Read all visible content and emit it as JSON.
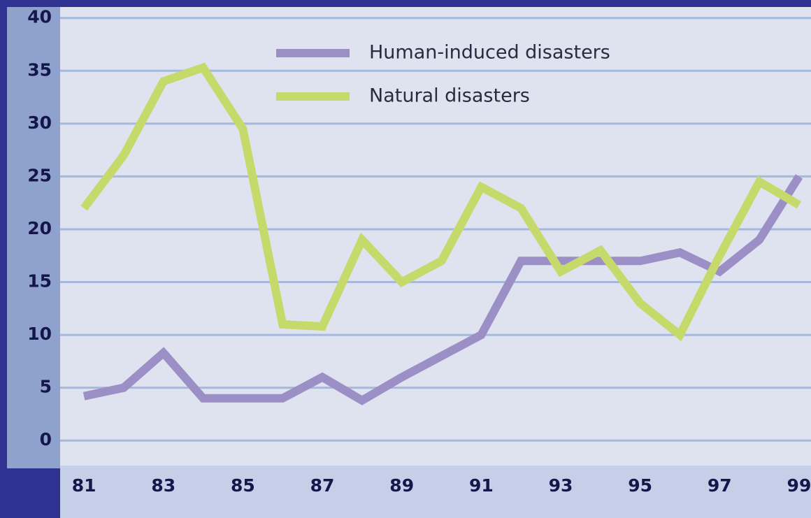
{
  "chart_data": {
    "type": "line",
    "x": [
      81,
      82,
      83,
      84,
      85,
      86,
      87,
      88,
      89,
      90,
      91,
      92,
      93,
      94,
      95,
      96,
      97,
      98,
      99
    ],
    "series": [
      {
        "name": "Human-induced disasters",
        "color": "#9c8fc6",
        "values": [
          4.2,
          5,
          8.3,
          4,
          4,
          4,
          6,
          3.8,
          6,
          8,
          10,
          17,
          17,
          17,
          17,
          17.8,
          16,
          19,
          25
        ]
      },
      {
        "name": "Natural disasters",
        "color": "#c6da6c",
        "values": [
          22,
          27,
          34,
          35.3,
          29.5,
          11,
          10.8,
          19,
          15,
          17,
          24,
          22,
          16,
          18,
          13,
          10,
          17.5,
          24.5,
          22.3
        ]
      }
    ],
    "xlim": [
      80.4,
      99.3
    ],
    "xticks": [
      81,
      83,
      85,
      87,
      89,
      91,
      93,
      95,
      97,
      99
    ],
    "ylim": [
      -2.3,
      41.7
    ],
    "yticks": [
      0,
      5,
      10,
      15,
      20,
      25,
      30,
      35,
      40
    ],
    "grid": true,
    "legend": "top"
  }
}
